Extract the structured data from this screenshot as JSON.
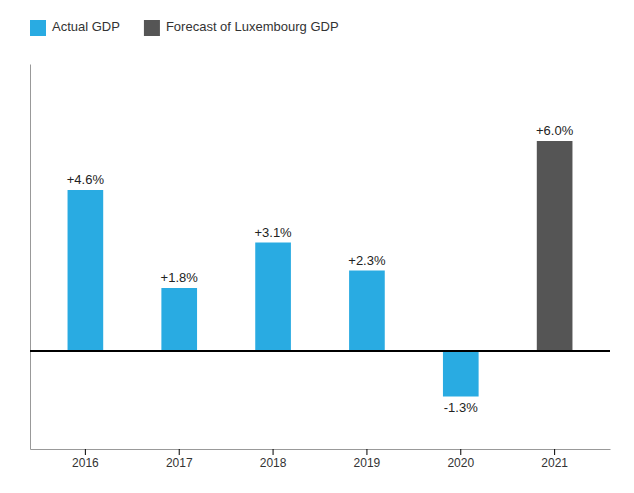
{
  "chart_data": {
    "type": "bar",
    "categories": [
      "2016",
      "2017",
      "2018",
      "2019",
      "2020",
      "2021"
    ],
    "series": [
      {
        "name": "Actual GDP",
        "color": "#29ABE2",
        "values": [
          4.6,
          1.8,
          3.1,
          2.3,
          -1.3,
          null
        ],
        "value_labels": [
          "+4.6%",
          "+1.8%",
          "+3.1%",
          "+2.3%",
          "-1.3%",
          null
        ]
      },
      {
        "name": "Forecast of Luxembourg GDP",
        "color": "#555555",
        "values": [
          null,
          null,
          null,
          null,
          null,
          6.0
        ],
        "value_labels": [
          null,
          null,
          null,
          null,
          null,
          "+6.0%"
        ]
      }
    ],
    "ylim": [
      -2.8,
      8.2
    ],
    "yticks": [],
    "data_labels": true,
    "tick_labels": "x",
    "legend": "upper left"
  }
}
